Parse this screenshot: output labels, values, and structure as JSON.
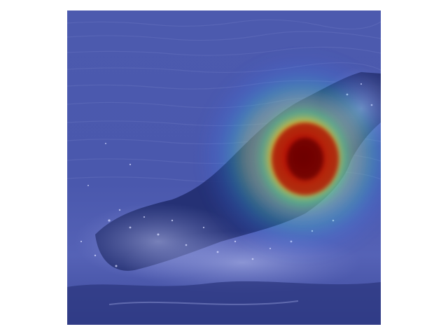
{
  "figure": {
    "description_kind": "heatmap overlay on photo",
    "colors": {
      "background": "#ffffff",
      "water_deep": "#3f4fa8",
      "water_mid": "#5665b8",
      "spray": "#8a93d8",
      "heat_low": "#3a8cff",
      "heat_mid": "#27e0d0",
      "heat_warm": "#f5e43a",
      "heat_hot": "#ff4a12",
      "heat_peak": "#8a0000"
    }
  }
}
